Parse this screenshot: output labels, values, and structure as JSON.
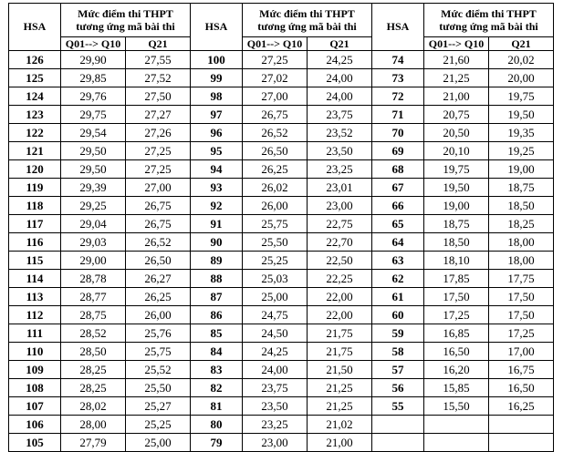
{
  "header": {
    "hsa": "HSA",
    "group_title_line1": "Mức điểm thi THPT",
    "group_title_line2": "tương ứng mã bài thi",
    "sub_q01_q10": "Q01--> Q10",
    "sub_q21": "Q21"
  },
  "groups": [
    {
      "rows": [
        {
          "hsa": "126",
          "q01_q10": "29,90",
          "q21": "27,55"
        },
        {
          "hsa": "125",
          "q01_q10": "29,85",
          "q21": "27,52"
        },
        {
          "hsa": "124",
          "q01_q10": "29,76",
          "q21": "27,50"
        },
        {
          "hsa": "123",
          "q01_q10": "29,75",
          "q21": "27,27"
        },
        {
          "hsa": "122",
          "q01_q10": "29,54",
          "q21": "27,26"
        },
        {
          "hsa": "121",
          "q01_q10": "29,50",
          "q21": "27,25"
        },
        {
          "hsa": "120",
          "q01_q10": "29,50",
          "q21": "27,25"
        },
        {
          "hsa": "119",
          "q01_q10": "29,39",
          "q21": "27,00"
        },
        {
          "hsa": "118",
          "q01_q10": "29,25",
          "q21": "26,75"
        },
        {
          "hsa": "117",
          "q01_q10": "29,04",
          "q21": "26,75"
        },
        {
          "hsa": "116",
          "q01_q10": "29,03",
          "q21": "26,52"
        },
        {
          "hsa": "115",
          "q01_q10": "29,00",
          "q21": "26,50"
        },
        {
          "hsa": "114",
          "q01_q10": "28,78",
          "q21": "26,27"
        },
        {
          "hsa": "113",
          "q01_q10": "28,77",
          "q21": "26,25"
        },
        {
          "hsa": "112",
          "q01_q10": "28,75",
          "q21": "26,00"
        },
        {
          "hsa": "111",
          "q01_q10": "28,52",
          "q21": "25,76"
        },
        {
          "hsa": "110",
          "q01_q10": "28,50",
          "q21": "25,75"
        },
        {
          "hsa": "109",
          "q01_q10": "28,25",
          "q21": "25,52"
        },
        {
          "hsa": "108",
          "q01_q10": "28,25",
          "q21": "25,50"
        },
        {
          "hsa": "107",
          "q01_q10": "28,02",
          "q21": "25,27"
        },
        {
          "hsa": "106",
          "q01_q10": "28,00",
          "q21": "25,25"
        },
        {
          "hsa": "105",
          "q01_q10": "27,79",
          "q21": "25,00"
        }
      ]
    },
    {
      "rows": [
        {
          "hsa": "100",
          "q01_q10": "27,25",
          "q21": "24,25"
        },
        {
          "hsa": "99",
          "q01_q10": "27,02",
          "q21": "24,00"
        },
        {
          "hsa": "98",
          "q01_q10": "27,00",
          "q21": "24,00"
        },
        {
          "hsa": "97",
          "q01_q10": "26,75",
          "q21": "23,75"
        },
        {
          "hsa": "96",
          "q01_q10": "26,52",
          "q21": "23,52"
        },
        {
          "hsa": "95",
          "q01_q10": "26,50",
          "q21": "23,50"
        },
        {
          "hsa": "94",
          "q01_q10": "26,25",
          "q21": "23,25"
        },
        {
          "hsa": "93",
          "q01_q10": "26,02",
          "q21": "23,01"
        },
        {
          "hsa": "92",
          "q01_q10": "26,00",
          "q21": "23,00"
        },
        {
          "hsa": "91",
          "q01_q10": "25,75",
          "q21": "22,75"
        },
        {
          "hsa": "90",
          "q01_q10": "25,50",
          "q21": "22,70"
        },
        {
          "hsa": "89",
          "q01_q10": "25,25",
          "q21": "22,50"
        },
        {
          "hsa": "88",
          "q01_q10": "25,03",
          "q21": "22,25"
        },
        {
          "hsa": "87",
          "q01_q10": "25,00",
          "q21": "22,00"
        },
        {
          "hsa": "86",
          "q01_q10": "24,75",
          "q21": "22,00"
        },
        {
          "hsa": "85",
          "q01_q10": "24,50",
          "q21": "21,75"
        },
        {
          "hsa": "84",
          "q01_q10": "24,25",
          "q21": "21,75"
        },
        {
          "hsa": "83",
          "q01_q10": "24,00",
          "q21": "21,50"
        },
        {
          "hsa": "82",
          "q01_q10": "23,75",
          "q21": "21,25"
        },
        {
          "hsa": "81",
          "q01_q10": "23,50",
          "q21": "21,25"
        },
        {
          "hsa": "80",
          "q01_q10": "23,25",
          "q21": "21,02"
        },
        {
          "hsa": "79",
          "q01_q10": "23,00",
          "q21": "21,00"
        }
      ]
    },
    {
      "rows": [
        {
          "hsa": "74",
          "q01_q10": "21,60",
          "q21": "20,02"
        },
        {
          "hsa": "73",
          "q01_q10": "21,25",
          "q21": "20,00"
        },
        {
          "hsa": "72",
          "q01_q10": "21,00",
          "q21": "19,75"
        },
        {
          "hsa": "71",
          "q01_q10": "20,75",
          "q21": "19,50"
        },
        {
          "hsa": "70",
          "q01_q10": "20,50",
          "q21": "19,35"
        },
        {
          "hsa": "69",
          "q01_q10": "20,10",
          "q21": "19,25"
        },
        {
          "hsa": "68",
          "q01_q10": "19,75",
          "q21": "19,00"
        },
        {
          "hsa": "67",
          "q01_q10": "19,50",
          "q21": "18,75"
        },
        {
          "hsa": "66",
          "q01_q10": "19,00",
          "q21": "18,50"
        },
        {
          "hsa": "65",
          "q01_q10": "18,75",
          "q21": "18,25"
        },
        {
          "hsa": "64",
          "q01_q10": "18,50",
          "q21": "18,00"
        },
        {
          "hsa": "63",
          "q01_q10": "18,10",
          "q21": "18,00"
        },
        {
          "hsa": "62",
          "q01_q10": "17,85",
          "q21": "17,75"
        },
        {
          "hsa": "61",
          "q01_q10": "17,50",
          "q21": "17,50"
        },
        {
          "hsa": "60",
          "q01_q10": "17,25",
          "q21": "17,50"
        },
        {
          "hsa": "59",
          "q01_q10": "16,85",
          "q21": "17,25"
        },
        {
          "hsa": "58",
          "q01_q10": "16,50",
          "q21": "17,00"
        },
        {
          "hsa": "57",
          "q01_q10": "16,20",
          "q21": "16,75"
        },
        {
          "hsa": "56",
          "q01_q10": "15,85",
          "q21": "16,50"
        },
        {
          "hsa": "55",
          "q01_q10": "15,50",
          "q21": "16,25"
        },
        {
          "hsa": "",
          "q01_q10": "",
          "q21": ""
        },
        {
          "hsa": "",
          "q01_q10": "",
          "q21": ""
        }
      ]
    }
  ]
}
